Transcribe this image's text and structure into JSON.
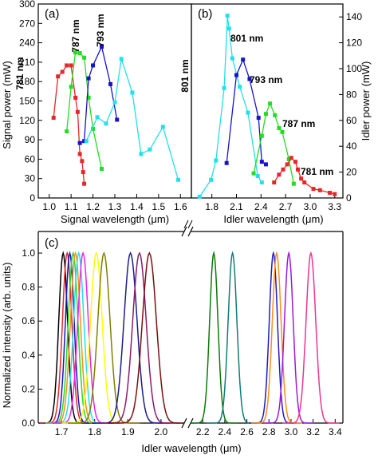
{
  "chart_data": [
    {
      "id": "a",
      "type": "line",
      "panel_label": "(a)",
      "xlabel": "Signal wavelength (μm)",
      "ylabel": "Signal power (mW)",
      "xlim": [
        0.95,
        1.65
      ],
      "ylim": [
        0,
        300
      ],
      "xticks": [
        "1.0",
        "1.1",
        "1.2",
        "1.3",
        "1.4",
        "1.5",
        "1.6"
      ],
      "yticks": [
        "0",
        "30",
        "60",
        "90",
        "120",
        "150",
        "180",
        "210",
        "240",
        "270",
        "300"
      ],
      "series": [
        {
          "name": "781 nm",
          "color": "#e8262a",
          "marker": "square",
          "x": [
            1.02,
            1.04,
            1.06,
            1.08,
            1.1,
            1.12,
            1.13,
            1.14,
            1.15,
            1.155,
            1.16
          ],
          "y": [
            124,
            188,
            195,
            205,
            205,
            155,
            133,
            68,
            57,
            40,
            22
          ]
        },
        {
          "name": "787 nm",
          "color": "#22dd22",
          "marker": "square",
          "x": [
            1.08,
            1.1,
            1.12,
            1.14,
            1.16,
            1.18,
            1.2,
            1.24
          ],
          "y": [
            103,
            172,
            225,
            224,
            217,
            155,
            107,
            45
          ]
        },
        {
          "name": "793 nm",
          "color": "#1515c8",
          "marker": "square",
          "x": [
            1.14,
            1.16,
            1.18,
            1.2,
            1.24,
            1.28,
            1.31
          ],
          "y": [
            85,
            88,
            185,
            205,
            234,
            176,
            121
          ]
        },
        {
          "name": "801 nm",
          "color": "#22e0ec",
          "marker": "square",
          "x": [
            1.17,
            1.22,
            1.26,
            1.3,
            1.33,
            1.38,
            1.42,
            1.46,
            1.52,
            1.59
          ],
          "y": [
            88,
            125,
            115,
            148,
            215,
            163,
            68,
            75,
            110,
            28
          ]
        }
      ]
    },
    {
      "id": "b",
      "type": "line",
      "panel_label": "(b)",
      "xlabel": "Idler wavelength (μm)",
      "ylabel": "Idler power (mW)",
      "xlim": [
        1.55,
        3.4
      ],
      "ylim": [
        0,
        150
      ],
      "xticks": [
        "1.8",
        "2.1",
        "2.4",
        "2.7",
        "3.0",
        "3.3"
      ],
      "yticks": [
        "0",
        "20",
        "40",
        "60",
        "80",
        "100",
        "120",
        "140"
      ],
      "series": [
        {
          "name": "801 nm",
          "color": "#22e0ec",
          "marker": "square",
          "x": [
            1.65,
            1.79,
            1.85,
            1.95,
            1.99,
            2.01,
            2.05,
            2.14,
            2.24,
            2.36,
            2.41
          ],
          "y": [
            1,
            14,
            29,
            85,
            141,
            131,
            108,
            86,
            66,
            17,
            12
          ]
        },
        {
          "name": "793 nm",
          "color": "#1515c8",
          "marker": "square",
          "x": [
            1.98,
            2.1,
            2.18,
            2.26,
            2.37,
            2.41,
            2.46
          ],
          "y": [
            27,
            95,
            107,
            92,
            62,
            28,
            26
          ]
        },
        {
          "name": "787 nm",
          "color": "#22dd22",
          "marker": "square",
          "x": [
            2.31,
            2.41,
            2.46,
            2.51,
            2.57,
            2.62,
            2.66,
            2.74,
            2.8
          ],
          "y": [
            19,
            48,
            65,
            73,
            64,
            54,
            51,
            30,
            11
          ]
        },
        {
          "name": "781 nm",
          "color": "#e8262a",
          "marker": "square",
          "x": [
            2.56,
            2.62,
            2.67,
            2.72,
            2.77,
            2.82,
            2.85,
            2.89,
            2.93,
            3.04,
            3.12,
            3.24,
            3.3
          ],
          "y": [
            12,
            18,
            22,
            26,
            31,
            28,
            22,
            15,
            12,
            7,
            6,
            4,
            3
          ]
        }
      ]
    },
    {
      "id": "c",
      "type": "line",
      "panel_label": "(c)",
      "xlabel": "Idler wavelength (μm)",
      "ylabel": "Normalized intensity (arb. units)",
      "ylim": [
        0,
        1.1
      ],
      "xlim_segment_1": [
        1.63,
        2.07
      ],
      "xlim_segment_2": [
        2.09,
        3.47
      ],
      "xticks_segment_1": [
        "1.7",
        "1.8",
        "1.9",
        "2.0"
      ],
      "xticks_segment_2": [
        "2.2",
        "2.4",
        "2.6",
        "2.8",
        "3.0",
        "3.2",
        "3.4"
      ],
      "yticks": [
        "0.0",
        "0.2",
        "0.4",
        "0.6",
        "0.8",
        "1.0"
      ],
      "series": [
        {
          "color": "#000000",
          "center": 1.705,
          "width": 0.03
        },
        {
          "color": "#e8262a",
          "center": 1.717,
          "width": 0.032
        },
        {
          "color": "#1515c8",
          "center": 1.725,
          "width": 0.03
        },
        {
          "color": "#22dd22",
          "center": 1.735,
          "width": 0.033
        },
        {
          "color": "#ff8c1a",
          "center": 1.742,
          "width": 0.034
        },
        {
          "color": "#22e0ec",
          "center": 1.752,
          "width": 0.035
        },
        {
          "color": "#ee22ee",
          "center": 1.765,
          "width": 0.036
        },
        {
          "color": "#ffff00",
          "center": 1.805,
          "width": 0.04
        },
        {
          "color": "#808000",
          "center": 1.828,
          "width": 0.042
        },
        {
          "color": "#1c1c8c",
          "center": 1.908,
          "width": 0.045
        },
        {
          "color": "#8b1a6e",
          "center": 1.935,
          "width": 0.046
        },
        {
          "color": "#7a1010",
          "center": 1.965,
          "width": 0.048
        },
        {
          "color": "#0a7a0a",
          "center": 2.3,
          "width": 0.085
        },
        {
          "color": "#107a7a",
          "center": 2.47,
          "width": 0.09
        },
        {
          "color": "#1c1cc8",
          "center": 2.84,
          "width": 0.085
        },
        {
          "color": "#ff8c1a",
          "center": 2.87,
          "width": 0.09
        },
        {
          "color": "#9a1ae0",
          "center": 2.98,
          "width": 0.09
        },
        {
          "color": "#ee3590",
          "center": 3.18,
          "width": 0.1
        }
      ]
    }
  ]
}
